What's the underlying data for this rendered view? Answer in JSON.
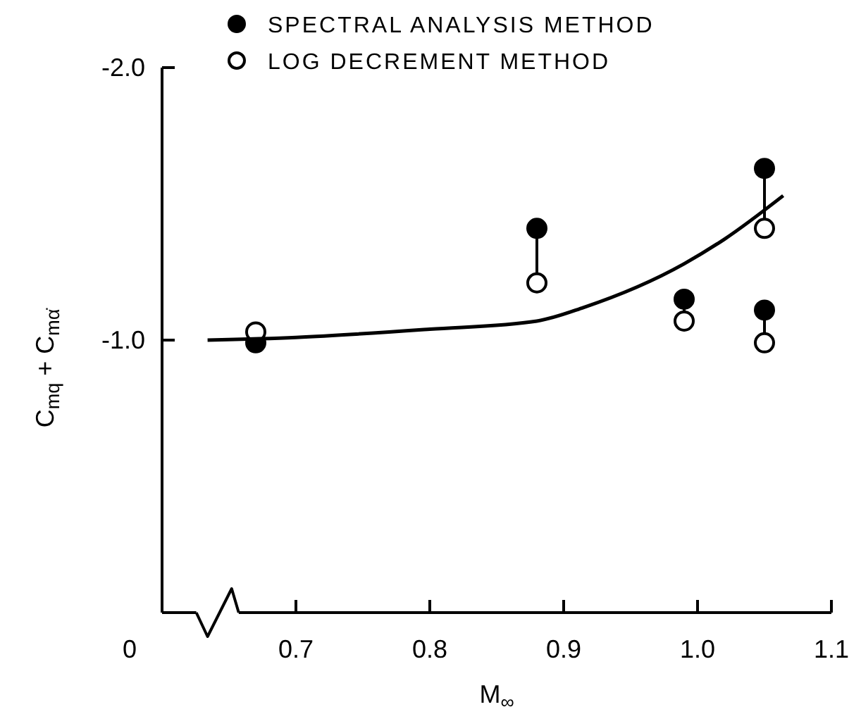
{
  "chart_data": {
    "type": "scatter",
    "xlabel": "M$_{∞}$",
    "ylabel": "C$_{mq}$ + C$_{mα̇}$",
    "xlim": [
      0.6,
      1.1
    ],
    "annotations": [
      "0"
    ],
    "xticks": [
      0.7,
      0.8,
      0.9,
      {
        "value": 1.0,
        "label": "1.0"
      },
      1.1
    ],
    "ylim": [
      0,
      -2.0
    ],
    "yticks": [
      {
        "value": -2.0,
        "label": "-2.0"
      },
      {
        "value": -1.0,
        "label": "-1.0"
      }
    ],
    "legend": "top",
    "grid": false,
    "series": [
      {
        "name": "SPECTRAL ANALYSIS METHOD",
        "color": "#000000",
        "marker": "circle",
        "x": [
          0.67,
          0.88,
          0.99,
          1.05,
          1.05
        ],
        "values": [
          -0.99,
          -1.41,
          -1.15,
          -1.63,
          -1.11
        ]
      },
      {
        "name": "LOG DECREMENT METHOD",
        "color": "#ffffff",
        "marker": "circle",
        "x": [
          0.67,
          0.88,
          0.99,
          1.05,
          1.05
        ],
        "values": [
          -1.03,
          -1.21,
          -1.07,
          -1.41,
          -0.99
        ]
      },
      {
        "type": "line",
        "color": "#000000",
        "marker": "none",
        "line_style": "solid",
        "x": [
          0.634,
          0.7,
          0.8,
          0.88,
          0.915,
          0.99,
          1.02,
          1.064
        ],
        "values": [
          -1.0,
          -1.01,
          -1.04,
          -1.07,
          -1.12,
          -1.28,
          -1.37,
          -1.53
        ]
      }
    ]
  }
}
